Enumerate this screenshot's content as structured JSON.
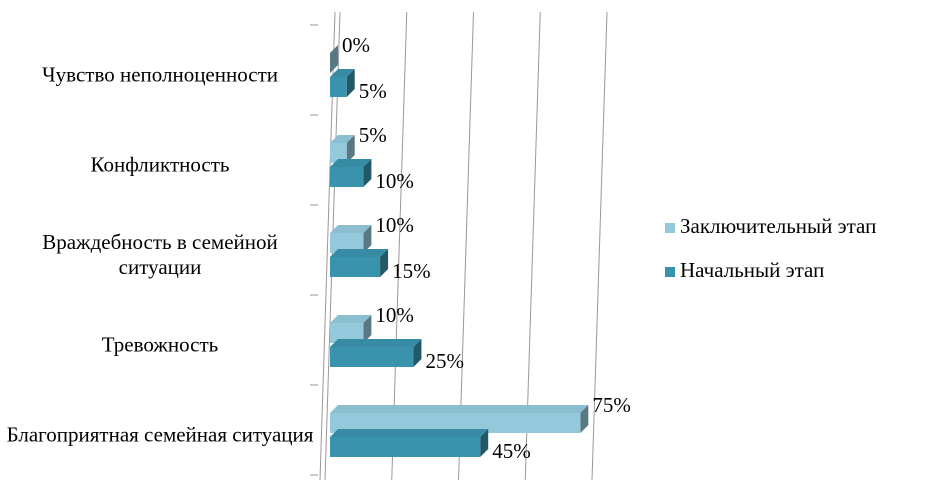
{
  "chart_data": {
    "type": "bar",
    "orientation": "horizontal",
    "categories": [
      "Чувство неполноценности",
      "Конфликтность",
      "Враждебность в семейной ситуации",
      "Тревожность",
      "Благоприятная семейная ситуация"
    ],
    "series": [
      {
        "name": "Заключительный этап",
        "color": "#93c9da",
        "values": [
          0,
          5,
          10,
          10,
          75
        ],
        "value_labels": [
          "0%",
          "5%",
          "10%",
          "10%",
          "75%"
        ]
      },
      {
        "name": "Начальный этап",
        "color": "#3a93ad",
        "values": [
          5,
          10,
          15,
          25,
          45
        ],
        "value_labels": [
          "5%",
          "10%",
          "15%",
          "25%",
          "45%"
        ]
      }
    ],
    "xlim": [
      0,
      80
    ],
    "xticks": [
      0,
      20,
      40,
      60,
      80
    ],
    "grid": true,
    "legend": "right"
  }
}
